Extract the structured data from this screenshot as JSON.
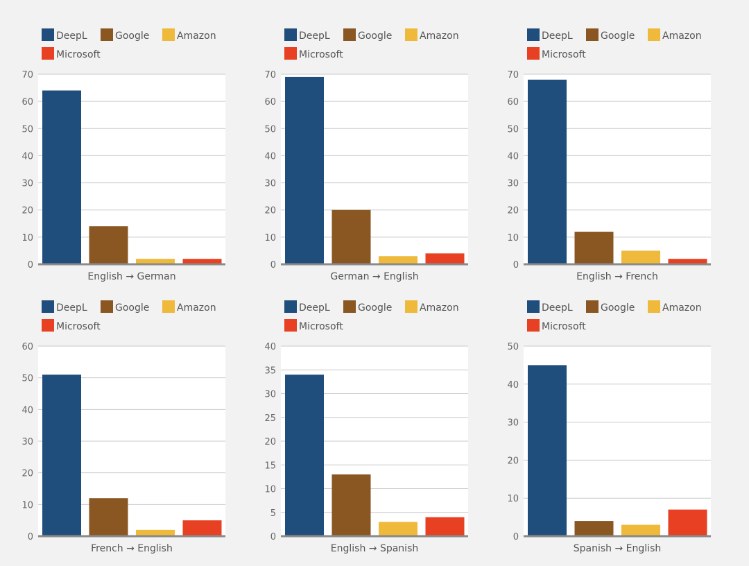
{
  "colors": {
    "DeepL": "#1f4e7d",
    "Google": "#8a5722",
    "Amazon": "#efb93b",
    "Microsoft": "#e74023",
    "plot_bg": "#ffffff",
    "grid": "#c9c9c9",
    "axis": "#8a8a8a"
  },
  "chart_data": [
    {
      "type": "bar",
      "title": "",
      "xlabel": "English → German",
      "ylabel": "",
      "ylim": [
        0,
        70
      ],
      "yticks": [
        0,
        10,
        20,
        30,
        40,
        50,
        60,
        70
      ],
      "legend": "top-left",
      "grid": true,
      "categories": [
        "DeepL",
        "Google",
        "Amazon",
        "Microsoft"
      ],
      "values": [
        64,
        14,
        2,
        2
      ]
    },
    {
      "type": "bar",
      "title": "",
      "xlabel": "German → English",
      "ylabel": "",
      "ylim": [
        0,
        70
      ],
      "yticks": [
        0,
        10,
        20,
        30,
        40,
        50,
        60,
        70
      ],
      "legend": "top-left",
      "grid": true,
      "categories": [
        "DeepL",
        "Google",
        "Amazon",
        "Microsoft"
      ],
      "values": [
        69,
        20,
        3,
        4
      ]
    },
    {
      "type": "bar",
      "title": "",
      "xlabel": "English → French",
      "ylabel": "",
      "ylim": [
        0,
        70
      ],
      "yticks": [
        0,
        10,
        20,
        30,
        40,
        50,
        60,
        70
      ],
      "legend": "top-left",
      "grid": true,
      "categories": [
        "DeepL",
        "Google",
        "Amazon",
        "Microsoft"
      ],
      "values": [
        68,
        12,
        5,
        2
      ]
    },
    {
      "type": "bar",
      "title": "",
      "xlabel": "French → English",
      "ylabel": "",
      "ylim": [
        0,
        60
      ],
      "yticks": [
        0,
        10,
        20,
        30,
        40,
        50,
        60
      ],
      "legend": "top-left",
      "grid": true,
      "categories": [
        "DeepL",
        "Google",
        "Amazon",
        "Microsoft"
      ],
      "values": [
        51,
        12,
        2,
        5
      ]
    },
    {
      "type": "bar",
      "title": "",
      "xlabel": "English → Spanish",
      "ylabel": "",
      "ylim": [
        0,
        40
      ],
      "yticks": [
        0,
        5,
        10,
        15,
        20,
        25,
        30,
        35,
        40
      ],
      "legend": "top-left",
      "grid": true,
      "categories": [
        "DeepL",
        "Google",
        "Amazon",
        "Microsoft"
      ],
      "values": [
        34,
        13,
        3,
        4
      ]
    },
    {
      "type": "bar",
      "title": "",
      "xlabel": "Spanish → English",
      "ylabel": "",
      "ylim": [
        0,
        50
      ],
      "yticks": [
        0,
        10,
        20,
        30,
        40,
        50
      ],
      "legend": "top-left",
      "grid": true,
      "categories": [
        "DeepL",
        "Google",
        "Amazon",
        "Microsoft"
      ],
      "values": [
        45,
        4,
        3,
        7
      ]
    }
  ]
}
